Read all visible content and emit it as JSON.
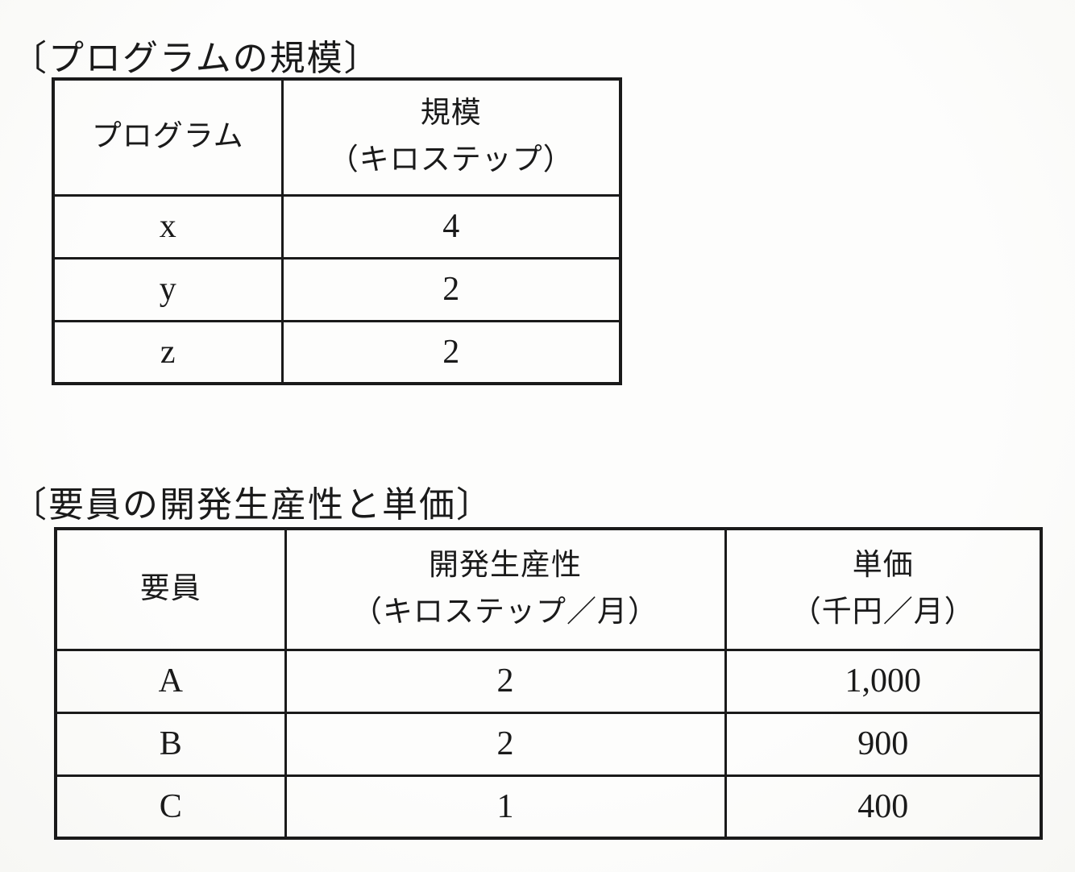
{
  "page": {
    "ink_color": "#1a1a1a",
    "paper_color": "#fdfdfc"
  },
  "program_size": {
    "title": "〔プログラムの規模〕",
    "columns": {
      "program": "プログラム",
      "size_label": "規模",
      "size_unit": "（キロステップ）"
    },
    "rows": [
      {
        "program": "x",
        "size": "4"
      },
      {
        "program": "y",
        "size": "2"
      },
      {
        "program": "z",
        "size": "2"
      }
    ]
  },
  "personnel": {
    "title": "〔要員の開発生産性と単価〕",
    "columns": {
      "member": "要員",
      "productivity_label": "開発生産性",
      "productivity_unit": "（キロステップ／月）",
      "price_label": "単価",
      "price_unit": "（千円／月）"
    },
    "rows": [
      {
        "member": "A",
        "productivity": "2",
        "price": "1,000"
      },
      {
        "member": "B",
        "productivity": "2",
        "price": "900"
      },
      {
        "member": "C",
        "productivity": "1",
        "price": "400"
      }
    ]
  }
}
